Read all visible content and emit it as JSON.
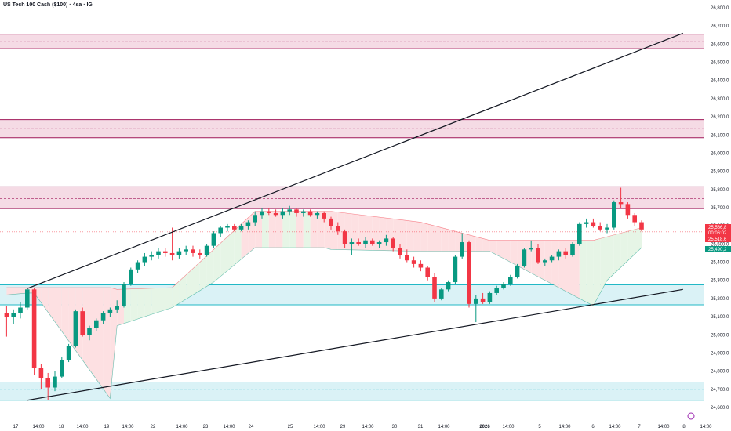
{
  "header": {
    "title": "US Tech 100 Cash ($100) · 4ѕа · IG"
  },
  "colors": {
    "up": "#089981",
    "down": "#f23645",
    "resistance_fill": "#f3d5e1",
    "resistance_border": "#a0195a",
    "support_fill": "#d4f0f5",
    "support_border": "#22b8c6",
    "cloud_up": "#e6f5e6",
    "cloud_down": "#fde0e2",
    "trend_line": "#131722"
  },
  "chart_data": {
    "type": "candlestick",
    "ylim": [
      24600,
      26800
    ],
    "y_ticks": [
      "24,600,0",
      "24,700,0",
      "24,800,0",
      "24,900,0",
      "25,000,0",
      "25,100,0",
      "25,200,0",
      "25,300,0",
      "25,400,0",
      "25,500,0",
      "25,600,0",
      "25,700,0",
      "25,800,0",
      "25,900,0",
      "26,000,0",
      "26,100,0",
      "26,200,0",
      "26,300,0",
      "26,400,0",
      "26,500,0",
      "26,600,0",
      "26,700,0",
      "26,800,0"
    ],
    "x_ticks": [
      "17",
      "14:00",
      "18",
      "14:00",
      "19",
      "14:00",
      "22",
      "14:00",
      "23",
      "14:00",
      "24",
      "25",
      "14:00",
      "29",
      "14:00",
      "30",
      "31",
      "14:00",
      "2026",
      "14:00",
      "5",
      "14:00",
      "6",
      "14:00",
      "7",
      "14:00",
      "8",
      "14:00"
    ],
    "zones": [
      {
        "kind": "resistance",
        "low": 26575,
        "high": 26655,
        "mid": 26614
      },
      {
        "kind": "resistance",
        "low": 26085,
        "high": 26185,
        "mid": 26135
      },
      {
        "kind": "resistance",
        "low": 25695,
        "high": 25815,
        "mid": 25750
      },
      {
        "kind": "support",
        "low": 25165,
        "high": 25275,
        "mid": 25220
      },
      {
        "kind": "support",
        "low": 24640,
        "high": 24740,
        "mid": 24700
      }
    ],
    "trendlines": [
      {
        "from": {
          "bar": 3,
          "price": 25255
        },
        "to": {
          "bar": 98,
          "price": 26660
        }
      },
      {
        "from": {
          "bar": 3,
          "price": 24640
        },
        "to": {
          "bar": 98,
          "price": 25250
        }
      }
    ],
    "candles": [
      {
        "o": 25120,
        "h": 25160,
        "l": 24990,
        "c": 25100
      },
      {
        "o": 25100,
        "h": 25140,
        "l": 25060,
        "c": 25120
      },
      {
        "o": 25120,
        "h": 25180,
        "l": 25090,
        "c": 25150
      },
      {
        "o": 25150,
        "h": 25260,
        "l": 25140,
        "c": 25250
      },
      {
        "o": 25250,
        "h": 25260,
        "l": 24780,
        "c": 24820
      },
      {
        "o": 24820,
        "h": 24840,
        "l": 24700,
        "c": 24760
      },
      {
        "o": 24760,
        "h": 24790,
        "l": 24640,
        "c": 24710
      },
      {
        "o": 24710,
        "h": 24800,
        "l": 24690,
        "c": 24770
      },
      {
        "o": 24770,
        "h": 24880,
        "l": 24760,
        "c": 24860
      },
      {
        "o": 24860,
        "h": 24950,
        "l": 24850,
        "c": 24940
      },
      {
        "o": 24940,
        "h": 25140,
        "l": 24930,
        "c": 25130
      },
      {
        "o": 25130,
        "h": 25150,
        "l": 24990,
        "c": 25000
      },
      {
        "o": 25000,
        "h": 25050,
        "l": 24970,
        "c": 25040
      },
      {
        "o": 25040,
        "h": 25090,
        "l": 25020,
        "c": 25080
      },
      {
        "o": 25080,
        "h": 25130,
        "l": 25060,
        "c": 25120
      },
      {
        "o": 25120,
        "h": 25150,
        "l": 25100,
        "c": 25140
      },
      {
        "o": 25140,
        "h": 25190,
        "l": 25120,
        "c": 25160
      },
      {
        "o": 25160,
        "h": 25290,
        "l": 25150,
        "c": 25280
      },
      {
        "o": 25280,
        "h": 25370,
        "l": 25270,
        "c": 25360
      },
      {
        "o": 25360,
        "h": 25410,
        "l": 25340,
        "c": 25400
      },
      {
        "o": 25400,
        "h": 25450,
        "l": 25380,
        "c": 25430
      },
      {
        "o": 25430,
        "h": 25460,
        "l": 25410,
        "c": 25440
      },
      {
        "o": 25440,
        "h": 25480,
        "l": 25420,
        "c": 25460
      },
      {
        "o": 25460,
        "h": 25480,
        "l": 25430,
        "c": 25450
      },
      {
        "o": 25450,
        "h": 25590,
        "l": 25410,
        "c": 25440
      },
      {
        "o": 25440,
        "h": 25480,
        "l": 25420,
        "c": 25460
      },
      {
        "o": 25460,
        "h": 25490,
        "l": 25440,
        "c": 25470
      },
      {
        "o": 25470,
        "h": 25490,
        "l": 25430,
        "c": 25450
      },
      {
        "o": 25450,
        "h": 25470,
        "l": 25420,
        "c": 25440
      },
      {
        "o": 25440,
        "h": 25500,
        "l": 25430,
        "c": 25490
      },
      {
        "o": 25490,
        "h": 25570,
        "l": 25480,
        "c": 25560
      },
      {
        "o": 25560,
        "h": 25600,
        "l": 25540,
        "c": 25590
      },
      {
        "o": 25590,
        "h": 25610,
        "l": 25570,
        "c": 25600
      },
      {
        "o": 25600,
        "h": 25610,
        "l": 25570,
        "c": 25580
      },
      {
        "o": 25580,
        "h": 25610,
        "l": 25570,
        "c": 25600
      },
      {
        "o": 25600,
        "h": 25630,
        "l": 25580,
        "c": 25620
      },
      {
        "o": 25620,
        "h": 25680,
        "l": 25600,
        "c": 25660
      },
      {
        "o": 25660,
        "h": 25700,
        "l": 25640,
        "c": 25680
      },
      {
        "o": 25680,
        "h": 25700,
        "l": 25660,
        "c": 25670
      },
      {
        "o": 25670,
        "h": 25690,
        "l": 25650,
        "c": 25660
      },
      {
        "o": 25660,
        "h": 25700,
        "l": 25640,
        "c": 25680
      },
      {
        "o": 25680,
        "h": 25710,
        "l": 25660,
        "c": 25690
      },
      {
        "o": 25690,
        "h": 25700,
        "l": 25650,
        "c": 25670
      },
      {
        "o": 25670,
        "h": 25690,
        "l": 25650,
        "c": 25680
      },
      {
        "o": 25680,
        "h": 25690,
        "l": 25650,
        "c": 25660
      },
      {
        "o": 25660,
        "h": 25680,
        "l": 25640,
        "c": 25670
      },
      {
        "o": 25670,
        "h": 25680,
        "l": 25620,
        "c": 25640
      },
      {
        "o": 25640,
        "h": 25650,
        "l": 25580,
        "c": 25600
      },
      {
        "o": 25600,
        "h": 25620,
        "l": 25550,
        "c": 25570
      },
      {
        "o": 25570,
        "h": 25580,
        "l": 25480,
        "c": 25500
      },
      {
        "o": 25500,
        "h": 25530,
        "l": 25440,
        "c": 25510
      },
      {
        "o": 25510,
        "h": 25530,
        "l": 25490,
        "c": 25500
      },
      {
        "o": 25500,
        "h": 25540,
        "l": 25480,
        "c": 25520
      },
      {
        "o": 25520,
        "h": 25530,
        "l": 25490,
        "c": 25500
      },
      {
        "o": 25500,
        "h": 25520,
        "l": 25480,
        "c": 25510
      },
      {
        "o": 25510,
        "h": 25550,
        "l": 25490,
        "c": 25530
      },
      {
        "o": 25530,
        "h": 25540,
        "l": 25460,
        "c": 25480
      },
      {
        "o": 25480,
        "h": 25500,
        "l": 25420,
        "c": 25440
      },
      {
        "o": 25440,
        "h": 25470,
        "l": 25400,
        "c": 25410
      },
      {
        "o": 25410,
        "h": 25430,
        "l": 25370,
        "c": 25390
      },
      {
        "o": 25390,
        "h": 25410,
        "l": 25350,
        "c": 25370
      },
      {
        "o": 25370,
        "h": 25380,
        "l": 25300,
        "c": 25320
      },
      {
        "o": 25320,
        "h": 25340,
        "l": 25180,
        "c": 25200
      },
      {
        "o": 25200,
        "h": 25260,
        "l": 25190,
        "c": 25250
      },
      {
        "o": 25250,
        "h": 25300,
        "l": 25240,
        "c": 25290
      },
      {
        "o": 25290,
        "h": 25440,
        "l": 25280,
        "c": 25430
      },
      {
        "o": 25430,
        "h": 25560,
        "l": 25420,
        "c": 25510
      },
      {
        "o": 25510,
        "h": 25520,
        "l": 25150,
        "c": 25170
      },
      {
        "o": 25170,
        "h": 25220,
        "l": 25070,
        "c": 25200
      },
      {
        "o": 25200,
        "h": 25230,
        "l": 25170,
        "c": 25180
      },
      {
        "o": 25180,
        "h": 25240,
        "l": 25170,
        "c": 25230
      },
      {
        "o": 25230,
        "h": 25270,
        "l": 25220,
        "c": 25260
      },
      {
        "o": 25260,
        "h": 25290,
        "l": 25250,
        "c": 25280
      },
      {
        "o": 25280,
        "h": 25330,
        "l": 25270,
        "c": 25320
      },
      {
        "o": 25320,
        "h": 25390,
        "l": 25310,
        "c": 25380
      },
      {
        "o": 25380,
        "h": 25480,
        "l": 25370,
        "c": 25470
      },
      {
        "o": 25470,
        "h": 25520,
        "l": 25460,
        "c": 25480
      },
      {
        "o": 25480,
        "h": 25500,
        "l": 25390,
        "c": 25400
      },
      {
        "o": 25400,
        "h": 25420,
        "l": 25380,
        "c": 25410
      },
      {
        "o": 25410,
        "h": 25440,
        "l": 25400,
        "c": 25430
      },
      {
        "o": 25430,
        "h": 25470,
        "l": 25410,
        "c": 25460
      },
      {
        "o": 25460,
        "h": 25480,
        "l": 25420,
        "c": 25440
      },
      {
        "o": 25440,
        "h": 25510,
        "l": 25430,
        "c": 25500
      },
      {
        "o": 25500,
        "h": 25620,
        "l": 25490,
        "c": 25610
      },
      {
        "o": 25610,
        "h": 25640,
        "l": 25590,
        "c": 25620
      },
      {
        "o": 25620,
        "h": 25640,
        "l": 25590,
        "c": 25600
      },
      {
        "o": 25600,
        "h": 25620,
        "l": 25570,
        "c": 25580
      },
      {
        "o": 25580,
        "h": 25610,
        "l": 25560,
        "c": 25590
      },
      {
        "o": 25590,
        "h": 25740,
        "l": 25580,
        "c": 25730
      },
      {
        "o": 25730,
        "h": 25810,
        "l": 25700,
        "c": 25720
      },
      {
        "o": 25720,
        "h": 25730,
        "l": 25640,
        "c": 25660
      },
      {
        "o": 25660,
        "h": 25670,
        "l": 25600,
        "c": 25620
      },
      {
        "o": 25620,
        "h": 25630,
        "l": 25570,
        "c": 25580
      }
    ],
    "cloud_upper": [
      [
        0,
        25260
      ],
      [
        3,
        25260
      ],
      [
        4,
        25260
      ],
      [
        15,
        25260
      ],
      [
        16,
        25250
      ],
      [
        24,
        25260
      ],
      [
        36,
        25680
      ],
      [
        46,
        25680
      ],
      [
        47,
        25680
      ],
      [
        60,
        25620
      ],
      [
        70,
        25520
      ],
      [
        85,
        25520
      ],
      [
        92,
        25590
      ]
    ],
    "cloud_lower": [
      [
        0,
        25220
      ],
      [
        3,
        25230
      ],
      [
        4,
        25230
      ],
      [
        15,
        24650
      ],
      [
        16,
        25050
      ],
      [
        24,
        25150
      ],
      [
        30,
        25290
      ],
      [
        36,
        25480
      ],
      [
        46,
        25480
      ],
      [
        47,
        25470
      ],
      [
        60,
        25460
      ],
      [
        70,
        25460
      ],
      [
        85,
        25160
      ],
      [
        87,
        25300
      ],
      [
        92,
        25480
      ]
    ],
    "price_labels": [
      {
        "text": "25,566,8",
        "value": 25566.8,
        "color": "#f23645"
      },
      {
        "text": "00:06:02",
        "value": 25541,
        "color": "#f23645"
      },
      {
        "text": "25,518,6",
        "value": 25518.6,
        "color": "#f23645"
      },
      {
        "text": "25,490,2",
        "value": 25490.2,
        "color": "#089981"
      }
    ],
    "last_price": 25566.8
  }
}
